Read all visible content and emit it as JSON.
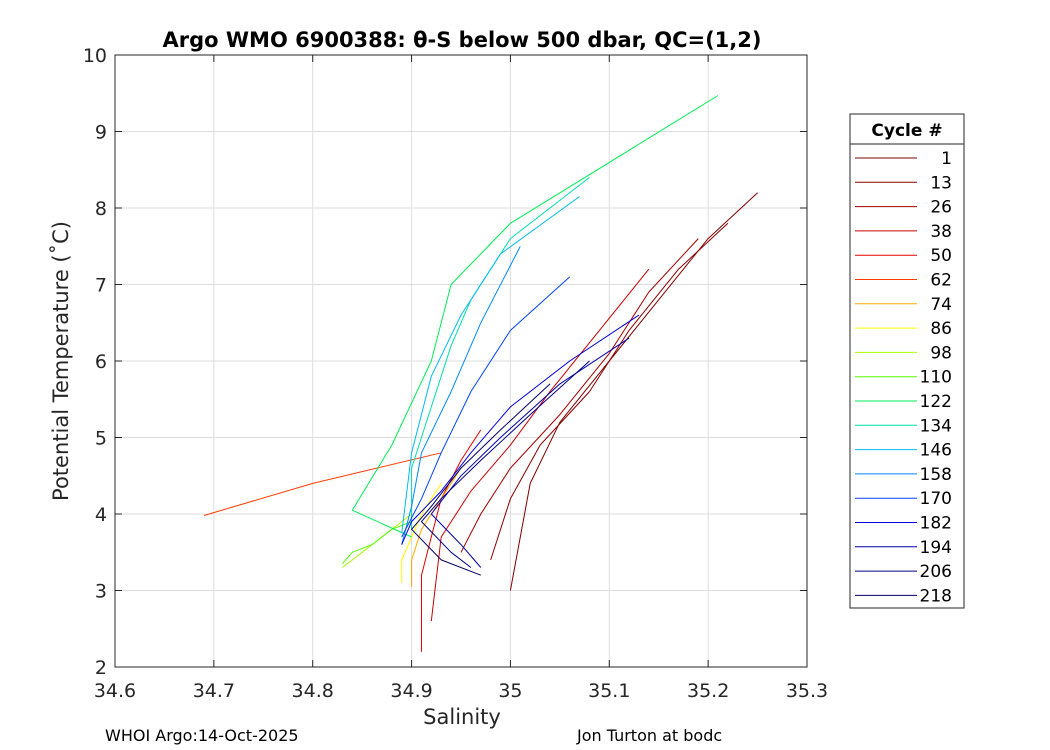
{
  "chart_data": {
    "type": "line",
    "title": "Argo WMO 6900388: θ-S below 500 dbar,  QC=(1,2)",
    "xlabel": "Salinity",
    "ylabel": "Potential Temperature (˚C)",
    "xlim": [
      34.6,
      35.3
    ],
    "ylim": [
      2,
      10
    ],
    "xticks": [
      34.6,
      34.7,
      34.8,
      34.9,
      35,
      35.1,
      35.2,
      35.3
    ],
    "xtick_labels": [
      "34.6",
      "34.7",
      "34.8",
      "34.9",
      "35",
      "35.1",
      "35.2",
      "35.3"
    ],
    "yticks": [
      2,
      3,
      4,
      5,
      6,
      7,
      8,
      9,
      10
    ],
    "ytick_labels": [
      "2",
      "3",
      "4",
      "5",
      "6",
      "7",
      "8",
      "9",
      "10"
    ],
    "grid": true,
    "legend_title": "Cycle #",
    "legend_position": "outside-right",
    "series": [
      {
        "name": "1",
        "color": "#7f0000",
        "s": [
          35.25,
          35.2,
          35.15,
          35.1,
          35.05,
          35.02,
          35.0
        ],
        "t": [
          8.2,
          7.6,
          6.8,
          6.0,
          5.2,
          4.4,
          3.0
        ]
      },
      {
        "name": "13",
        "color": "#8b0000",
        "s": [
          35.22,
          35.17,
          35.12,
          35.08,
          35.03,
          35.0,
          34.98
        ],
        "t": [
          7.8,
          7.2,
          6.4,
          5.6,
          4.9,
          4.2,
          3.4
        ]
      },
      {
        "name": "26",
        "color": "#a50000",
        "s": [
          35.19,
          35.14,
          35.1,
          35.05,
          35.0,
          34.97,
          34.95
        ],
        "t": [
          7.6,
          6.9,
          6.1,
          5.3,
          4.6,
          4.0,
          3.5
        ]
      },
      {
        "name": "38",
        "color": "#c80000",
        "s": [
          35.14,
          35.09,
          35.04,
          35.0,
          34.96,
          34.93,
          34.92
        ],
        "t": [
          7.2,
          6.4,
          5.6,
          4.9,
          4.3,
          3.7,
          2.6
        ]
      },
      {
        "name": "50",
        "color": "#e60000",
        "s": [
          34.97,
          34.95,
          34.93,
          34.92,
          34.91,
          34.91
        ],
        "t": [
          5.1,
          4.7,
          4.2,
          3.7,
          3.2,
          2.2
        ]
      },
      {
        "name": "62",
        "color": "#ff3c00",
        "s": [
          34.93,
          34.8,
          34.69
        ],
        "t": [
          4.8,
          4.4,
          3.98
        ]
      },
      {
        "name": "74",
        "color": "#ffaa00",
        "s": [
          34.95,
          34.93,
          34.91,
          34.9,
          34.9
        ],
        "t": [
          4.6,
          4.2,
          3.8,
          3.4,
          3.05
        ]
      },
      {
        "name": "86",
        "color": "#ffff00",
        "s": [
          34.93,
          34.91,
          34.9,
          34.89,
          34.89
        ],
        "t": [
          4.4,
          4.0,
          3.7,
          3.4,
          3.1
        ]
      },
      {
        "name": "98",
        "color": "#aaff00",
        "s": [
          34.9,
          34.87,
          34.85,
          34.84,
          34.83
        ],
        "t": [
          4.0,
          3.7,
          3.5,
          3.4,
          3.3
        ]
      },
      {
        "name": "110",
        "color": "#55ff00",
        "s": [
          34.9,
          34.88,
          34.86,
          34.84,
          34.83
        ],
        "t": [
          3.9,
          3.8,
          3.6,
          3.5,
          3.35
        ]
      },
      {
        "name": "122",
        "color": "#00ee55",
        "s": [
          35.21,
          35.0,
          34.97,
          34.94,
          34.92,
          34.88,
          34.84,
          34.9
        ],
        "t": [
          9.47,
          7.8,
          7.4,
          7.0,
          6.0,
          4.9,
          4.05,
          3.7
        ]
      },
      {
        "name": "134",
        "color": "#00ddaa",
        "s": [
          35.08,
          35.0,
          34.96,
          34.94,
          34.92,
          34.9,
          34.9
        ],
        "t": [
          8.4,
          7.6,
          6.8,
          6.2,
          5.4,
          4.6,
          3.8
        ]
      },
      {
        "name": "146",
        "color": "#00bbee",
        "s": [
          35.07,
          34.99,
          34.95,
          34.92,
          34.9,
          34.89
        ],
        "t": [
          8.15,
          7.4,
          6.6,
          5.8,
          4.8,
          3.75
        ]
      },
      {
        "name": "158",
        "color": "#0088ff",
        "s": [
          35.01,
          34.97,
          34.94,
          34.91,
          34.9,
          34.89
        ],
        "t": [
          7.5,
          6.5,
          5.6,
          4.8,
          4.1,
          3.6
        ]
      },
      {
        "name": "170",
        "color": "#0044ff",
        "s": [
          35.06,
          35.0,
          34.96,
          34.93,
          34.91,
          34.89
        ],
        "t": [
          7.1,
          6.4,
          5.6,
          4.8,
          4.2,
          3.7
        ]
      },
      {
        "name": "182",
        "color": "#0000dd",
        "s": [
          35.13,
          35.06,
          35.0,
          34.96,
          34.93,
          34.9,
          34.89
        ],
        "t": [
          6.6,
          6.0,
          5.4,
          4.8,
          4.3,
          3.9,
          3.6
        ]
      },
      {
        "name": "194",
        "color": "#0000aa",
        "s": [
          35.12,
          35.05,
          34.99,
          34.95,
          34.92,
          34.95,
          34.97
        ],
        "t": [
          6.3,
          5.7,
          5.0,
          4.5,
          4.0,
          3.6,
          3.3
        ]
      },
      {
        "name": "206",
        "color": "#000088",
        "s": [
          35.08,
          35.02,
          34.97,
          34.93,
          34.91,
          34.94,
          34.96
        ],
        "t": [
          6.0,
          5.3,
          4.7,
          4.2,
          3.9,
          3.5,
          3.3
        ]
      },
      {
        "name": "218",
        "color": "#000066",
        "s": [
          35.04,
          34.99,
          34.95,
          34.92,
          34.9,
          34.93,
          34.97
        ],
        "t": [
          5.7,
          5.1,
          4.6,
          4.1,
          3.8,
          3.4,
          3.2
        ]
      }
    ]
  },
  "footer": {
    "left": "WHOI Argo:14-Oct-2025",
    "right": "Jon Turton at bodc"
  }
}
